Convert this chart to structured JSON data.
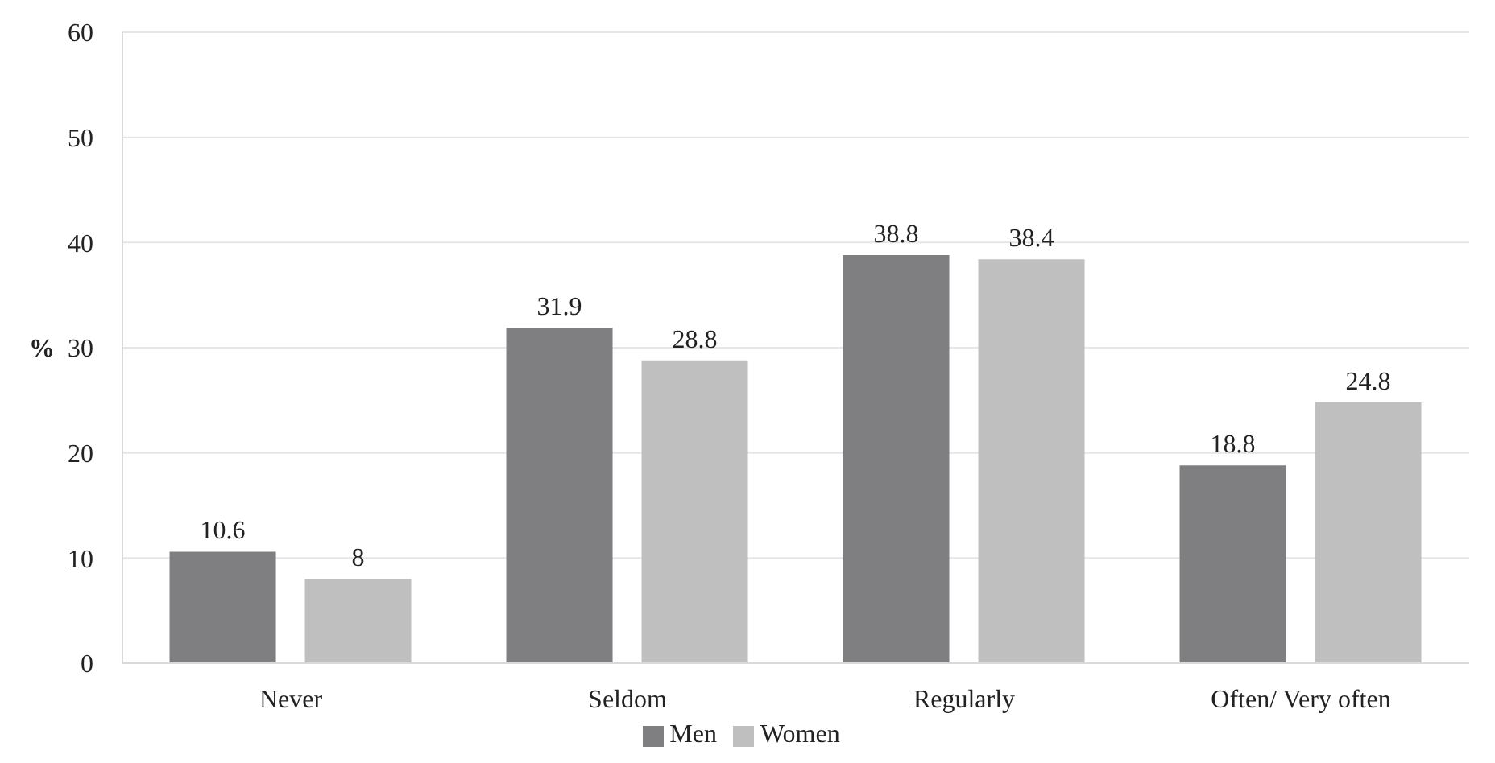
{
  "chart_data": {
    "type": "bar",
    "ylabel": "%",
    "categories": [
      "Never",
      "Seldom",
      "Regularly",
      "Often/ Very often"
    ],
    "series": [
      {
        "name": "Men",
        "color": "#7f7f81",
        "values": [
          10.6,
          31.9,
          38.8,
          18.8
        ]
      },
      {
        "name": "Women",
        "color": "#bfbfbf",
        "values": [
          8,
          28.8,
          38.4,
          24.8
        ]
      }
    ],
    "ylim": [
      0,
      60
    ],
    "yticks": [
      0,
      10,
      20,
      30,
      40,
      50,
      60
    ],
    "grid": "y",
    "legend": "bottom",
    "data_labels": true
  }
}
